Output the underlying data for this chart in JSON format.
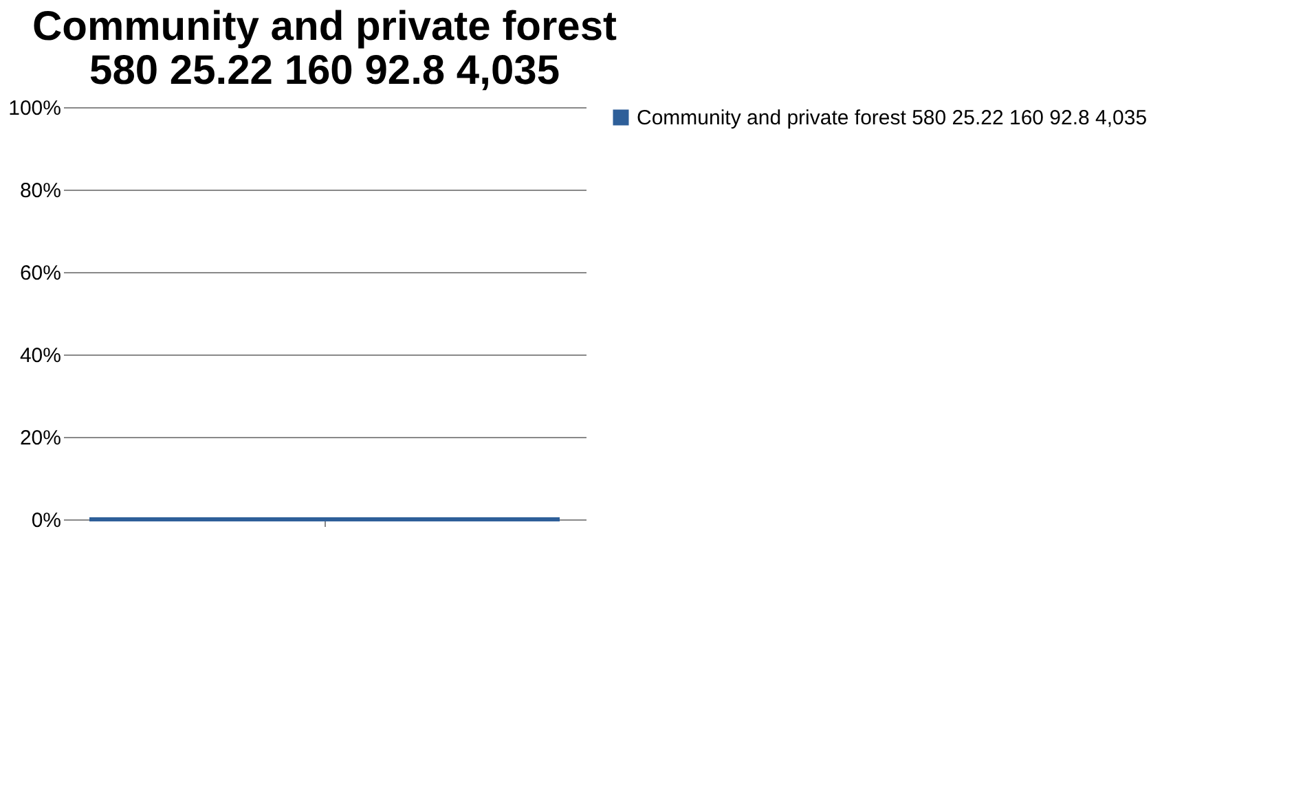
{
  "chart_data": {
    "type": "bar",
    "title": "Community and private forest  580 25.22 160 92.8 4,035",
    "categories": [
      null
    ],
    "series": [
      {
        "name": "Community and private forest  580 25.22 160 92.8 4,035",
        "color": "#2e5f99",
        "values": [
          0
        ]
      }
    ],
    "ylim": [
      0,
      100
    ],
    "yticks": [
      {
        "value": 0,
        "label": "0%"
      },
      {
        "value": 20,
        "label": "20%"
      },
      {
        "value": 40,
        "label": "40%"
      },
      {
        "value": 60,
        "label": "60%"
      },
      {
        "value": 80,
        "label": "80%"
      },
      {
        "value": 100,
        "label": "100%"
      }
    ],
    "grid": "y",
    "legend": "right"
  }
}
